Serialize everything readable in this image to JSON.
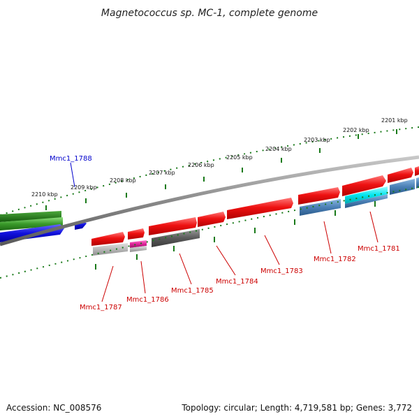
{
  "title": "Magnetococcus sp. MC-1, complete genome",
  "footer": {
    "accession": "Accession: NC_008576",
    "summary": "Topology: circular; Length: 4,719,581 bp; Genes: 3,772"
  },
  "colors": {
    "red": "#e01010",
    "green": "#3a9a2a",
    "blue": "#1010dd",
    "gray": "#6a6a6a",
    "lightgray": "#b8b8b8",
    "magenta": "#dd2299",
    "steelblue": "#4a7fb5",
    "cyan": "#00e5ee",
    "backbone": "#8a8a8a",
    "tick": "#1a7a1a"
  },
  "kbp_labels": [
    "2201 kbp",
    "2202 kbp",
    "2203 kbp",
    "2204 kbp",
    "2205 kbp",
    "2206 kbp",
    "2207 kbp",
    "2208 kbp",
    "2209 kbp",
    "2210 kbp"
  ],
  "gene_labels": [
    {
      "name": "Mmc1_1781",
      "color": "#cc0000"
    },
    {
      "name": "Mmc1_1782",
      "color": "#cc0000"
    },
    {
      "name": "Mmc1_1783",
      "color": "#cc0000"
    },
    {
      "name": "Mmc1_1784",
      "color": "#cc0000"
    },
    {
      "name": "Mmc1_1785",
      "color": "#cc0000"
    },
    {
      "name": "Mmc1_1786",
      "color": "#cc0000"
    },
    {
      "name": "Mmc1_1787",
      "color": "#cc0000"
    },
    {
      "name": "Mmc1_1788",
      "color": "#0000cc"
    }
  ]
}
